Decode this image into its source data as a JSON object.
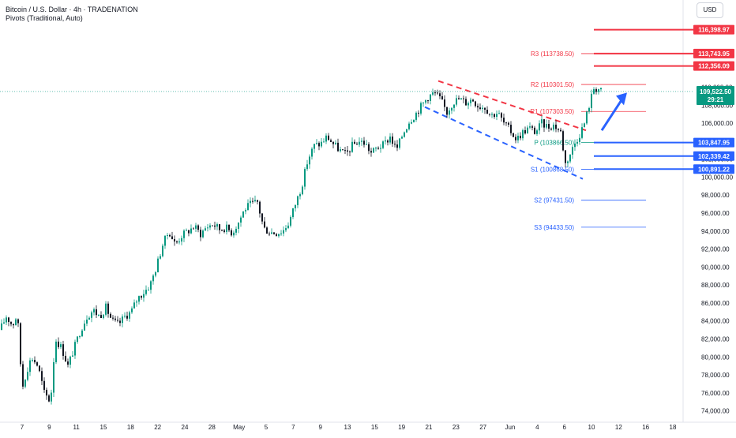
{
  "header": {
    "title": "Bitcoin / U.S. Dollar · 4h · TRADENATION",
    "indicator": "Pivots (Traditional, Auto)",
    "currency": "USD"
  },
  "chart_data": {
    "type": "candlestick",
    "ylim": [
      73000,
      119000
    ],
    "y_ticks": [
      74000,
      76000,
      78000,
      80000,
      82000,
      84000,
      86000,
      88000,
      90000,
      92000,
      94000,
      96000,
      98000,
      100000,
      102000,
      104000,
      106000,
      108000,
      110000
    ],
    "y_tick_labels": [
      "74,000.00",
      "76,000.00",
      "78,000.00",
      "80,000.00",
      "82,000.00",
      "84,000.00",
      "86,000.00",
      "88,000.00",
      "90,000.00",
      "92,000.00",
      "94,000.00",
      "96,000.00",
      "98,000.00",
      "100,000.00",
      "102,000.00",
      "104,000.00",
      "106,000.00",
      "108,000.00",
      "110,000.00"
    ],
    "x_ticks": [
      "7",
      "9",
      "11",
      "15",
      "18",
      "22",
      "24",
      "28",
      "May",
      "5",
      "7",
      "9",
      "13",
      "15",
      "19",
      "21",
      "23",
      "27",
      "Jun",
      "4",
      "6",
      "10",
      "12",
      "16",
      "18"
    ],
    "price_path": [
      [
        0,
        83000
      ],
      [
        8,
        84500
      ],
      [
        16,
        83500
      ],
      [
        22,
        84800
      ],
      [
        28,
        76500
      ],
      [
        34,
        78500
      ],
      [
        40,
        80000
      ],
      [
        48,
        79000
      ],
      [
        56,
        76000
      ],
      [
        64,
        75000
      ],
      [
        70,
        82000
      ],
      [
        78,
        81000
      ],
      [
        86,
        79000
      ],
      [
        94,
        81000
      ],
      [
        102,
        83000
      ],
      [
        110,
        84500
      ],
      [
        118,
        85200
      ],
      [
        126,
        84500
      ],
      [
        134,
        85500
      ],
      [
        142,
        84000
      ],
      [
        150,
        83600
      ],
      [
        158,
        84500
      ],
      [
        166,
        85000
      ],
      [
        174,
        86500
      ],
      [
        182,
        87200
      ],
      [
        190,
        88000
      ],
      [
        198,
        90000
      ],
      [
        206,
        92500
      ],
      [
        214,
        94000
      ],
      [
        222,
        92500
      ],
      [
        230,
        93500
      ],
      [
        238,
        94000
      ],
      [
        246,
        94500
      ],
      [
        254,
        93700
      ],
      [
        262,
        94500
      ],
      [
        270,
        94800
      ],
      [
        278,
        94200
      ],
      [
        286,
        94400
      ],
      [
        294,
        93800
      ],
      [
        302,
        95000
      ],
      [
        310,
        96500
      ],
      [
        318,
        97000
      ],
      [
        326,
        97200
      ],
      [
        334,
        94300
      ],
      [
        342,
        93900
      ],
      [
        350,
        93800
      ],
      [
        358,
        94000
      ],
      [
        366,
        95000
      ],
      [
        374,
        97000
      ],
      [
        382,
        99000
      ],
      [
        390,
        102000
      ],
      [
        398,
        103500
      ],
      [
        406,
        103700
      ],
      [
        414,
        104500
      ],
      [
        422,
        103700
      ],
      [
        430,
        103000
      ],
      [
        438,
        102500
      ],
      [
        446,
        103500
      ],
      [
        454,
        104000
      ],
      [
        462,
        103800
      ],
      [
        470,
        102700
      ],
      [
        478,
        103300
      ],
      [
        486,
        103600
      ],
      [
        494,
        104500
      ],
      [
        502,
        103000
      ],
      [
        510,
        104800
      ],
      [
        518,
        106200
      ],
      [
        526,
        107000
      ],
      [
        534,
        108000
      ],
      [
        542,
        108900
      ],
      [
        550,
        109400
      ],
      [
        558,
        108600
      ],
      [
        566,
        107200
      ],
      [
        574,
        108400
      ],
      [
        582,
        108700
      ],
      [
        590,
        108300
      ],
      [
        598,
        108700
      ],
      [
        606,
        107900
      ],
      [
        614,
        107800
      ],
      [
        622,
        106900
      ],
      [
        630,
        107200
      ],
      [
        638,
        106000
      ],
      [
        646,
        105200
      ],
      [
        654,
        104200
      ],
      [
        662,
        105000
      ],
      [
        670,
        105500
      ],
      [
        678,
        105000
      ],
      [
        686,
        106000
      ],
      [
        694,
        105600
      ],
      [
        702,
        105800
      ],
      [
        710,
        105000
      ],
      [
        716,
        101500
      ],
      [
        722,
        102600
      ],
      [
        728,
        103800
      ],
      [
        734,
        104800
      ],
      [
        740,
        106000
      ],
      [
        746,
        108000
      ],
      [
        752,
        109900
      ],
      [
        758,
        109800
      ],
      [
        762,
        109500
      ]
    ],
    "pivots": [
      {
        "name": "R3",
        "label": "R3 (113738.50)",
        "value": 113738.5,
        "color": "#f23645"
      },
      {
        "name": "R2",
        "label": "R2 (110301.50)",
        "value": 110301.5,
        "color": "#f23645"
      },
      {
        "name": "R1",
        "label": "R1 (107303.50)",
        "value": 107303.5,
        "color": "#f23645"
      },
      {
        "name": "P",
        "label": "P (103866.50)",
        "value": 103866.5,
        "color": "#089981"
      },
      {
        "name": "S1",
        "label": "S1 (100868.50)",
        "value": 100868.5,
        "color": "#2962ff"
      },
      {
        "name": "S2",
        "label": "S2 (97431.50)",
        "value": 97431.5,
        "color": "#2962ff"
      },
      {
        "name": "S3",
        "label": "S3 (94433.50)",
        "value": 94433.5,
        "color": "#2962ff"
      }
    ],
    "horizontal_levels": [
      {
        "value": 116398.97,
        "label": "116,398.97",
        "color": "#f23645"
      },
      {
        "value": 113743.95,
        "label": "113,743.95",
        "color": "#f23645"
      },
      {
        "value": 112356.09,
        "label": "112,356.09",
        "color": "#f23645"
      },
      {
        "value": 103847.95,
        "label": "103,847.95",
        "color": "#2962ff"
      },
      {
        "value": 102339.42,
        "label": "102,339.42",
        "color": "#2962ff"
      },
      {
        "value": 100891.22,
        "label": "100,891.22",
        "color": "#2962ff"
      }
    ],
    "current_price": {
      "value": 109522.5,
      "label": "109,522.50",
      "countdown": "29:21",
      "color": "#089981"
    },
    "colors": {
      "up": "#089981",
      "down": "#131722",
      "bull_arrow": "#2962ff"
    }
  }
}
